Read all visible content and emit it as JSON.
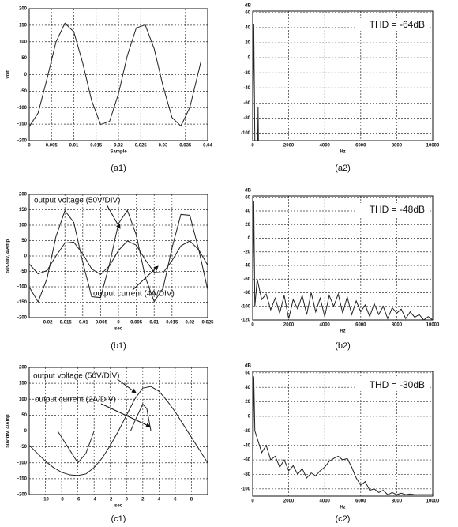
{
  "chart_data": [
    {
      "type": "line",
      "caption": "(a1)",
      "xlabel": "Sample",
      "ylabel": "Volt",
      "xlim": [
        0,
        0.04
      ],
      "xticks": [
        0,
        0.005,
        0.01,
        0.015,
        0.02,
        0.025,
        0.03,
        0.035,
        0.04
      ],
      "ylim": [
        -200,
        200
      ],
      "yticks": [
        -200,
        -150,
        -100,
        -50,
        0,
        50,
        100,
        150,
        200
      ],
      "grid": true,
      "series": [
        {
          "color": "#222222",
          "x": [
            0,
            0.002,
            0.004,
            0.006,
            0.008,
            0.01,
            0.012,
            0.014,
            0.016,
            0.018,
            0.02,
            0.022,
            0.024,
            0.026,
            0.028,
            0.03,
            0.032,
            0.034,
            0.036,
            0.038,
            0.0385
          ],
          "values": [
            -158,
            -116,
            -12,
            99,
            156,
            130,
            35,
            -79,
            -151,
            -142,
            -58,
            58,
            142,
            151,
            79,
            -35,
            -130,
            -156,
            -99,
            12,
            41
          ]
        }
      ]
    },
    {
      "type": "line",
      "caption": "(a2)",
      "xlabel": "Hz",
      "ylabel": "dB",
      "annotation": "THD = -64dB",
      "xlim": [
        0,
        10000
      ],
      "xticks": [
        0,
        2000,
        4000,
        6000,
        8000,
        10000
      ],
      "ylim": [
        -110,
        62
      ],
      "yticks": [
        -100,
        -80,
        -60,
        -40,
        -20,
        0,
        20,
        40,
        60
      ],
      "grid": true,
      "series": [
        {
          "color": "#222222",
          "x": [
            0,
            60,
            120,
            280,
            300,
            320,
            10000
          ],
          "values": [
            -110,
            45,
            -110,
            -110,
            -65,
            -110,
            -110
          ]
        }
      ]
    },
    {
      "type": "line",
      "caption": "(b1)",
      "xlabel": "sec",
      "ylabel": "50V/div, 4/Amp",
      "annotations": [
        "output voltage (50V/DIV)",
        "output current (4A/DIV)"
      ],
      "xlim": [
        -0.025,
        0.025
      ],
      "xticks": [
        -0.02,
        -0.015,
        -0.01,
        -0.005,
        0,
        0.005,
        0.01,
        0.015,
        0.02,
        0.025
      ],
      "ylim": [
        -200,
        200
      ],
      "yticks": [
        -200,
        -150,
        -100,
        -50,
        0,
        50,
        100,
        150,
        200
      ],
      "grid": true,
      "series": [
        {
          "color": "#222222",
          "x": [
            -0.025,
            -0.0225,
            -0.02,
            -0.0175,
            -0.015,
            -0.0125,
            -0.01,
            -0.0075,
            -0.005,
            -0.0025,
            0,
            0.0025,
            0.005,
            0.0075,
            0.01,
            0.0125,
            0.015,
            0.0175,
            0.02,
            0.0225,
            0.025
          ],
          "values": [
            -101,
            -149,
            -73,
            63,
            147,
            109,
            -20,
            -132,
            -135,
            -26,
            105,
            148,
            68,
            -68,
            -148,
            -105,
            26,
            135,
            132,
            20,
            -109
          ]
        },
        {
          "color": "#222222",
          "x": [
            -0.025,
            -0.0225,
            -0.02,
            -0.0175,
            -0.015,
            -0.0125,
            -0.01,
            -0.0075,
            -0.005,
            -0.0025,
            0,
            0.0025,
            0.005,
            0.0075,
            0.01,
            0.0125,
            0.015,
            0.0175,
            0.02,
            0.0225,
            0.025
          ],
          "values": [
            -26,
            -58,
            -47,
            0,
            42,
            45,
            7,
            -42,
            -60,
            -32,
            18,
            49,
            35,
            -12,
            -53,
            -55,
            -15,
            33,
            49,
            20,
            -30
          ]
        }
      ]
    },
    {
      "type": "line",
      "caption": "(b2)",
      "xlabel": "Hz",
      "ylabel": "dB",
      "annotation": "THD = -48dB",
      "xlim": [
        0,
        10000
      ],
      "xticks": [
        0,
        2000,
        4000,
        6000,
        8000,
        10000
      ],
      "ylim": [
        -120,
        62
      ],
      "yticks": [
        -120,
        -100,
        -80,
        -60,
        -40,
        -20,
        0,
        20,
        40,
        60
      ],
      "grid": true,
      "series": [
        {
          "color": "#222222",
          "x": [
            0,
            60,
            120,
            250,
            500,
            750,
            1000,
            1250,
            1500,
            1750,
            2000,
            2250,
            2500,
            2750,
            3000,
            3250,
            3500,
            3750,
            4000,
            4250,
            4500,
            4750,
            5000,
            5250,
            5500,
            5750,
            6000,
            6250,
            6500,
            6750,
            7000,
            7250,
            7500,
            7750,
            8000,
            8250,
            8500,
            8750,
            9000,
            9250,
            9500,
            9750,
            10000
          ],
          "values": [
            -120,
            55,
            -100,
            -60,
            -90,
            -82,
            -105,
            -88,
            -110,
            -84,
            -118,
            -90,
            -104,
            -84,
            -112,
            -80,
            -108,
            -88,
            -115,
            -84,
            -100,
            -82,
            -110,
            -86,
            -112,
            -92,
            -108,
            -98,
            -115,
            -96,
            -112,
            -100,
            -118,
            -102,
            -110,
            -104,
            -118,
            -108,
            -116,
            -112,
            -120,
            -115,
            -120
          ]
        }
      ]
    },
    {
      "type": "line",
      "caption": "(c1)",
      "xlabel": "sec",
      "ylabel": "50V/div, 4/Amp",
      "annotations": [
        "output voltage (50V/DIV)",
        "output current (2A/DIV)"
      ],
      "xlim": [
        -12,
        10
      ],
      "xticks": [
        -10,
        -8,
        -6,
        -4,
        -2,
        0,
        2,
        4,
        6,
        8
      ],
      "ylim": [
        -200,
        200
      ],
      "yticks": [
        -200,
        -150,
        -100,
        -50,
        0,
        50,
        100,
        150,
        200
      ],
      "grid": true,
      "series": [
        {
          "color": "#222222",
          "x": [
            -12,
            -11,
            -10,
            -9,
            -8,
            -7,
            -6,
            -5,
            -4,
            -3,
            -2,
            -1,
            0,
            1,
            2,
            3,
            4,
            5,
            6,
            7,
            8,
            9,
            10
          ],
          "values": [
            -45,
            -70,
            -95,
            -115,
            -130,
            -138,
            -140,
            -135,
            -115,
            -85,
            -45,
            0,
            50,
            100,
            135,
            140,
            125,
            95,
            60,
            20,
            -20,
            -60,
            -100
          ]
        },
        {
          "color": "#222222",
          "x": [
            -12,
            -8.5,
            -7,
            -6,
            -5,
            -4,
            0.5,
            1,
            2,
            2.5,
            3,
            10
          ],
          "values": [
            0,
            0,
            -60,
            -100,
            -70,
            0,
            0,
            30,
            85,
            70,
            0,
            0
          ]
        }
      ]
    },
    {
      "type": "line",
      "caption": "(c2)",
      "xlabel": "Hz",
      "ylabel": "dB",
      "annotation": "THD = -30dB",
      "xlim": [
        0,
        10000
      ],
      "xticks": [
        0,
        2000,
        4000,
        6000,
        8000,
        10000
      ],
      "ylim": [
        -110,
        62
      ],
      "yticks": [
        -100,
        -80,
        -60,
        -40,
        -20,
        0,
        20,
        40,
        60
      ],
      "grid": true,
      "series": [
        {
          "color": "#222222",
          "x": [
            0,
            60,
            120,
            250,
            500,
            750,
            1000,
            1250,
            1500,
            1750,
            2000,
            2250,
            2500,
            2750,
            3000,
            3250,
            3500,
            3750,
            4000,
            4250,
            4500,
            4750,
            5000,
            5250,
            5500,
            5750,
            6000,
            6250,
            6500,
            6750,
            7000,
            7250,
            7500,
            7750,
            8000,
            8250,
            8500,
            8750,
            9000,
            9250,
            9500,
            9750,
            10000
          ],
          "values": [
            -110,
            55,
            -20,
            -30,
            -50,
            -40,
            -60,
            -55,
            -70,
            -60,
            -75,
            -68,
            -80,
            -72,
            -85,
            -78,
            -82,
            -75,
            -70,
            -62,
            -58,
            -55,
            -60,
            -58,
            -70,
            -85,
            -95,
            -90,
            -102,
            -100,
            -105,
            -102,
            -108,
            -105,
            -108,
            -106,
            -108,
            -107,
            -108,
            -108,
            -108,
            -108,
            -108
          ]
        }
      ]
    }
  ]
}
